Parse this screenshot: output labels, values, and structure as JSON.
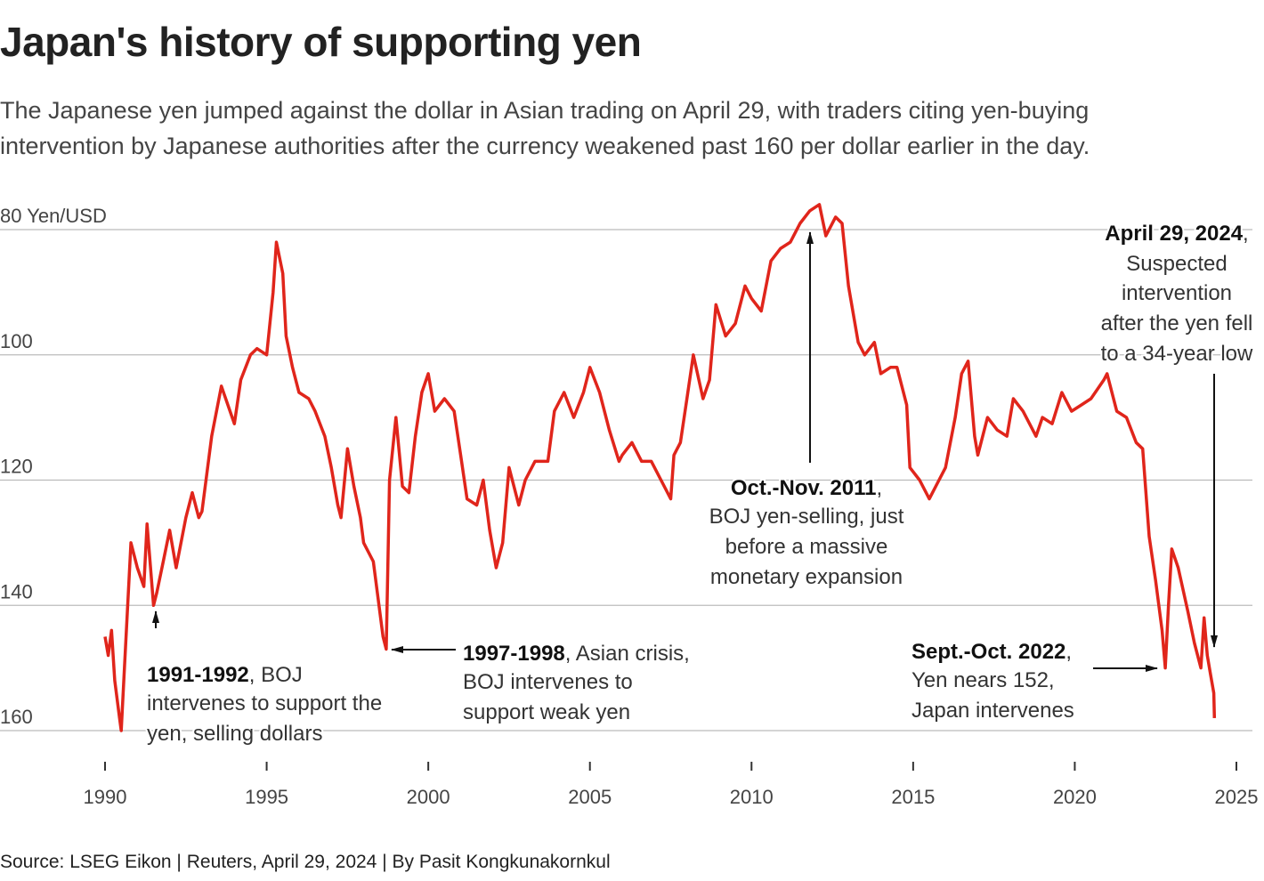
{
  "title": "Japan's history of supporting yen",
  "subtitle": "The Japanese yen jumped against the dollar in Asian trading on April 29, with traders citing yen-buying intervention by Japanese authorities after the currency weakened past 160 per dollar earlier in the day.",
  "source": "Source: LSEG Eikon | Reuters, April 29, 2024 | By Pasit Kongkunakornkul",
  "chart_data": {
    "type": "line",
    "ylabel": "Yen/USD",
    "y_tick_labels": [
      "80 Yen/USD",
      "100",
      "120",
      "140",
      "160"
    ],
    "y_ticks": [
      80,
      100,
      120,
      140,
      160
    ],
    "ylim": [
      80,
      160
    ],
    "y_inverted": true,
    "xlim": [
      1990,
      2025
    ],
    "x_ticks": [
      "1990",
      "1995",
      "2000",
      "2005",
      "2010",
      "2015",
      "2020",
      "2025"
    ],
    "grid": "horizontal",
    "line_color": "#e0251b",
    "series": [
      {
        "values": [
          [
            1990.0,
            145
          ],
          [
            1990.1,
            148
          ],
          [
            1990.2,
            144
          ],
          [
            1990.3,
            152
          ],
          [
            1990.45,
            158
          ],
          [
            1990.5,
            160
          ],
          [
            1990.6,
            150
          ],
          [
            1990.8,
            130
          ],
          [
            1991.0,
            134
          ],
          [
            1991.2,
            137
          ],
          [
            1991.3,
            127
          ],
          [
            1991.5,
            140
          ],
          [
            1991.6,
            138
          ],
          [
            1991.8,
            133
          ],
          [
            1992.0,
            128
          ],
          [
            1992.2,
            134
          ],
          [
            1992.5,
            126
          ],
          [
            1992.7,
            122
          ],
          [
            1992.9,
            126
          ],
          [
            1993.0,
            125
          ],
          [
            1993.3,
            113
          ],
          [
            1993.6,
            105
          ],
          [
            1993.8,
            108
          ],
          [
            1994.0,
            111
          ],
          [
            1994.2,
            104
          ],
          [
            1994.5,
            100
          ],
          [
            1994.7,
            99
          ],
          [
            1995.0,
            100
          ],
          [
            1995.2,
            90
          ],
          [
            1995.3,
            82
          ],
          [
            1995.5,
            87
          ],
          [
            1995.6,
            97
          ],
          [
            1995.8,
            102
          ],
          [
            1996.0,
            106
          ],
          [
            1996.3,
            107
          ],
          [
            1996.5,
            109
          ],
          [
            1996.8,
            113
          ],
          [
            1997.0,
            118
          ],
          [
            1997.2,
            124
          ],
          [
            1997.3,
            126
          ],
          [
            1997.5,
            115
          ],
          [
            1997.7,
            121
          ],
          [
            1997.9,
            126
          ],
          [
            1998.0,
            130
          ],
          [
            1998.3,
            133
          ],
          [
            1998.6,
            145
          ],
          [
            1998.7,
            147
          ],
          [
            1998.8,
            120
          ],
          [
            1998.9,
            115
          ],
          [
            1999.0,
            110
          ],
          [
            1999.2,
            121
          ],
          [
            1999.4,
            122
          ],
          [
            1999.6,
            113
          ],
          [
            1999.8,
            106
          ],
          [
            2000.0,
            103
          ],
          [
            2000.2,
            109
          ],
          [
            2000.5,
            107
          ],
          [
            2000.8,
            109
          ],
          [
            2001.0,
            116
          ],
          [
            2001.2,
            123
          ],
          [
            2001.5,
            124
          ],
          [
            2001.7,
            120
          ],
          [
            2001.9,
            128
          ],
          [
            2002.1,
            134
          ],
          [
            2002.3,
            130
          ],
          [
            2002.5,
            118
          ],
          [
            2002.8,
            124
          ],
          [
            2003.0,
            120
          ],
          [
            2003.3,
            117
          ],
          [
            2003.7,
            117
          ],
          [
            2003.9,
            109
          ],
          [
            2004.2,
            106
          ],
          [
            2004.5,
            110
          ],
          [
            2004.8,
            106
          ],
          [
            2005.0,
            102
          ],
          [
            2005.3,
            106
          ],
          [
            2005.6,
            112
          ],
          [
            2005.9,
            117
          ],
          [
            2006.0,
            116
          ],
          [
            2006.3,
            114
          ],
          [
            2006.6,
            117
          ],
          [
            2006.9,
            117
          ],
          [
            2007.2,
            120
          ],
          [
            2007.5,
            123
          ],
          [
            2007.6,
            116
          ],
          [
            2007.8,
            114
          ],
          [
            2008.0,
            107
          ],
          [
            2008.2,
            100
          ],
          [
            2008.5,
            107
          ],
          [
            2008.7,
            104
          ],
          [
            2008.9,
            92
          ],
          [
            2009.2,
            97
          ],
          [
            2009.5,
            95
          ],
          [
            2009.8,
            89
          ],
          [
            2010.0,
            91
          ],
          [
            2010.3,
            93
          ],
          [
            2010.6,
            85
          ],
          [
            2010.9,
            83
          ],
          [
            2011.2,
            82
          ],
          [
            2011.5,
            79
          ],
          [
            2011.8,
            77
          ],
          [
            2012.1,
            76
          ],
          [
            2012.3,
            81
          ],
          [
            2012.6,
            78
          ],
          [
            2012.8,
            79
          ],
          [
            2013.0,
            89
          ],
          [
            2013.3,
            98
          ],
          [
            2013.5,
            100
          ],
          [
            2013.8,
            98
          ],
          [
            2014.0,
            103
          ],
          [
            2014.3,
            102
          ],
          [
            2014.5,
            102
          ],
          [
            2014.8,
            108
          ],
          [
            2014.9,
            118
          ],
          [
            2015.2,
            120
          ],
          [
            2015.5,
            123
          ],
          [
            2015.8,
            120
          ],
          [
            2016.0,
            118
          ],
          [
            2016.3,
            110
          ],
          [
            2016.5,
            103
          ],
          [
            2016.7,
            101
          ],
          [
            2016.9,
            113
          ],
          [
            2017.0,
            116
          ],
          [
            2017.3,
            110
          ],
          [
            2017.6,
            112
          ],
          [
            2017.9,
            113
          ],
          [
            2018.1,
            107
          ],
          [
            2018.4,
            109
          ],
          [
            2018.8,
            113
          ],
          [
            2019.0,
            110
          ],
          [
            2019.3,
            111
          ],
          [
            2019.6,
            106
          ],
          [
            2019.9,
            109
          ],
          [
            2020.2,
            108
          ],
          [
            2020.5,
            107
          ],
          [
            2020.9,
            104
          ],
          [
            2021.0,
            103
          ],
          [
            2021.3,
            109
          ],
          [
            2021.6,
            110
          ],
          [
            2021.9,
            114
          ],
          [
            2022.1,
            115
          ],
          [
            2022.3,
            129
          ],
          [
            2022.5,
            136
          ],
          [
            2022.7,
            144
          ],
          [
            2022.8,
            150
          ],
          [
            2022.9,
            140
          ],
          [
            2023.0,
            131
          ],
          [
            2023.2,
            134
          ],
          [
            2023.5,
            141
          ],
          [
            2023.7,
            146
          ],
          [
            2023.9,
            150
          ],
          [
            2024.0,
            142
          ],
          [
            2024.1,
            148
          ],
          [
            2024.2,
            151
          ],
          [
            2024.3,
            154
          ],
          [
            2024.32,
            158
          ]
        ]
      }
    ],
    "annotations": [
      {
        "bold": "1991-1992",
        "lines": [
          ", BOJ",
          "intervenes to support the",
          "yen, selling dollars"
        ]
      },
      {
        "bold": "1997-1998",
        "lines": [
          ", Asian crisis,",
          "BOJ intervenes to",
          "support weak yen"
        ]
      },
      {
        "bold": "Oct.-Nov. 2011",
        "lines": [
          ",",
          "BOJ yen-selling, just",
          "before a massive",
          "monetary expansion"
        ]
      },
      {
        "bold": "Sept.-Oct. 2022",
        "lines": [
          ",",
          "Yen nears 152,",
          "Japan intervenes"
        ]
      },
      {
        "bold": "April 29, 2024",
        "lines": [
          ",",
          "Suspected",
          "intervention",
          "after the yen fell",
          "to a 34-year low"
        ]
      }
    ]
  }
}
